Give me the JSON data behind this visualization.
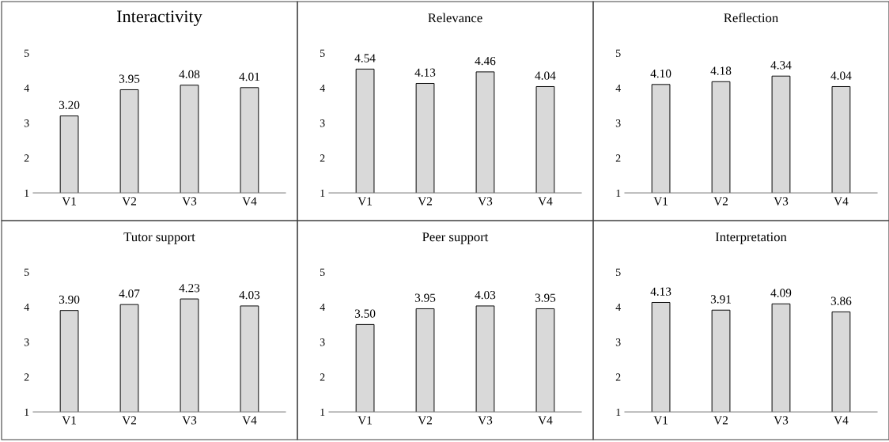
{
  "chart_data": [
    {
      "type": "bar",
      "title": "Interactivity",
      "categories": [
        "V1",
        "V2",
        "V3",
        "V4"
      ],
      "values": [
        3.2,
        3.95,
        4.08,
        4.01
      ],
      "value_labels": [
        "3.20",
        "3.95",
        "4.08",
        "4.01"
      ],
      "color": "#d9d9d9",
      "ylim": [
        1,
        5
      ],
      "yticks": [
        1,
        2,
        3,
        4,
        5
      ],
      "grid": false,
      "legend": false
    },
    {
      "type": "bar",
      "title": "Relevance",
      "categories": [
        "V1",
        "V2",
        "V3",
        "V4"
      ],
      "values": [
        4.54,
        4.13,
        4.46,
        4.04
      ],
      "value_labels": [
        "4.54",
        "4.13",
        "4.46",
        "4.04"
      ],
      "color": "#d9d9d9",
      "ylim": [
        1,
        5
      ],
      "yticks": [
        1,
        2,
        3,
        4,
        5
      ],
      "grid": false,
      "legend": false
    },
    {
      "type": "bar",
      "title": "Reflection",
      "categories": [
        "V1",
        "V2",
        "V3",
        "V4"
      ],
      "values": [
        4.1,
        4.18,
        4.34,
        4.04
      ],
      "value_labels": [
        "4.10",
        "4.18",
        "4.34",
        "4.04"
      ],
      "color": "#d9d9d9",
      "ylim": [
        1,
        5
      ],
      "yticks": [
        1,
        2,
        3,
        4,
        5
      ],
      "grid": false,
      "legend": false
    },
    {
      "type": "bar",
      "title": "Tutor support",
      "categories": [
        "V1",
        "V2",
        "V3",
        "V4"
      ],
      "values": [
        3.9,
        4.07,
        4.23,
        4.03
      ],
      "value_labels": [
        "3.90",
        "4.07",
        "4.23",
        "4.03"
      ],
      "color": "#d9d9d9",
      "ylim": [
        1,
        5
      ],
      "yticks": [
        1,
        2,
        3,
        4,
        5
      ],
      "grid": false,
      "legend": false
    },
    {
      "type": "bar",
      "title": "Peer support",
      "categories": [
        "V1",
        "V2",
        "V3",
        "V4"
      ],
      "values": [
        3.5,
        3.95,
        4.03,
        3.95
      ],
      "value_labels": [
        "3.50",
        "3.95",
        "4.03",
        "3.95"
      ],
      "color": "#d9d9d9",
      "ylim": [
        1,
        5
      ],
      "yticks": [
        1,
        2,
        3,
        4,
        5
      ],
      "grid": false,
      "legend": false
    },
    {
      "type": "bar",
      "title": "Interpretation",
      "categories": [
        "V1",
        "V2",
        "V3",
        "V4"
      ],
      "values": [
        4.13,
        3.91,
        4.09,
        3.86
      ],
      "value_labels": [
        "4.13",
        "3.91",
        "4.09",
        "3.86"
      ],
      "color": "#d9d9d9",
      "ylim": [
        1,
        5
      ],
      "yticks": [
        1,
        2,
        3,
        4,
        5
      ],
      "grid": false,
      "legend": false
    }
  ]
}
